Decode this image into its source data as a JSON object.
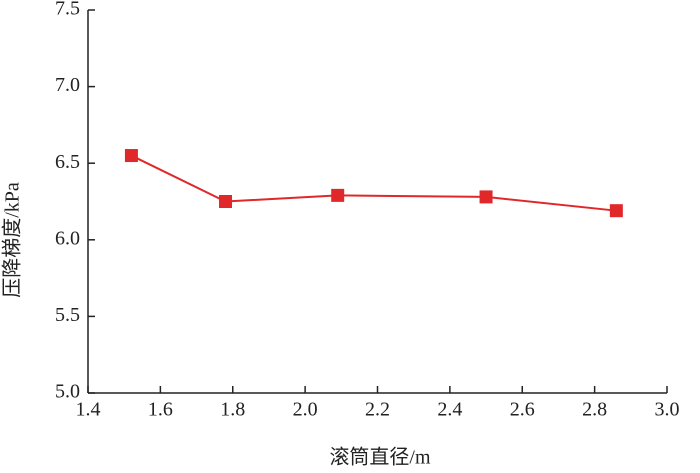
{
  "chart_data": {
    "type": "line",
    "xlabel": "滚筒直径/m",
    "ylabel": "压降梯度/kPa",
    "x": [
      1.52,
      1.78,
      2.09,
      2.5,
      2.86
    ],
    "series": [
      {
        "color": "#e0282a",
        "values": [
          6.55,
          6.25,
          6.29,
          6.28,
          6.19
        ]
      }
    ],
    "xlim": [
      1.4,
      3.0
    ],
    "xticks": [
      1.4,
      1.6,
      1.8,
      {
        "value": 2,
        "label": "2.0"
      },
      2.2,
      2.4,
      2.6,
      2.8,
      {
        "value": 3,
        "label": "3.0"
      }
    ],
    "ylim": [
      5.0,
      7.5
    ],
    "yticks": [
      {
        "value": 5,
        "label": "5.0"
      },
      5.5,
      {
        "value": 6,
        "label": "6.0"
      },
      6.5,
      {
        "value": 7,
        "label": "7.0"
      },
      7.5
    ],
    "grid": false,
    "marker": "square"
  }
}
